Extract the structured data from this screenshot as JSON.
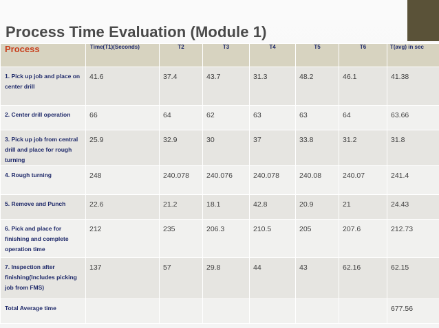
{
  "slide": {
    "title": "Process Time Evaluation (Module 1)"
  },
  "table": {
    "headers": [
      "Process",
      "Time(T1)(Seconds)",
      "T2",
      "T3",
      "T4",
      "T5",
      "T6",
      "T(avg) in sec"
    ],
    "rows": [
      {
        "process": " 1. Pick up job and place on center drill",
        "values": [
          "41.6",
          "37.4",
          "43.7",
          "31.3",
          "48.2",
          "46.1",
          "41.38"
        ]
      },
      {
        "process": "2. Center drill operation",
        "values": [
          "66",
          "64",
          "62",
          "63",
          "63",
          "64",
          "63.66"
        ]
      },
      {
        "process": "3. Pick up job from central drill and place for rough turning",
        "values": [
          "25.9",
          "32.9",
          "30",
          "37",
          "33.8",
          "31.2",
          "31.8"
        ]
      },
      {
        "process": "4. Rough turning",
        "values": [
          "248",
          "240.078",
          "240.076",
          "240.078",
          "240.08",
          "240.07",
          "241.4"
        ]
      },
      {
        "process": "5. Remove and Punch",
        "values": [
          "22.6",
          "21.2",
          "18.1",
          "42.8",
          "20.9",
          "21",
          "24.43"
        ]
      },
      {
        "process": "6. Pick and place for finishing and complete operation time",
        "values": [
          "212",
          "235",
          "206.3",
          "210.5",
          "205",
          "207.6",
          "212.73"
        ]
      },
      {
        "process": "7. Inspection after finishing(Includes picking job from FMS)",
        "values": [
          "137",
          "57",
          "29.8",
          "44",
          "43",
          " 62.16",
          "62.15"
        ]
      },
      {
        "process": "Total Average time",
        "values": [
          "",
          "",
          "",
          "",
          "",
          "",
          "677.56"
        ]
      }
    ]
  },
  "colors": {
    "header_bg": "#d7d3c0",
    "row_odd": "#e6e5e1",
    "row_even": "#f1f1ef",
    "process_text": "#1f2a6a",
    "process_header": "#c8401d",
    "corner_box": "#5a5238"
  }
}
